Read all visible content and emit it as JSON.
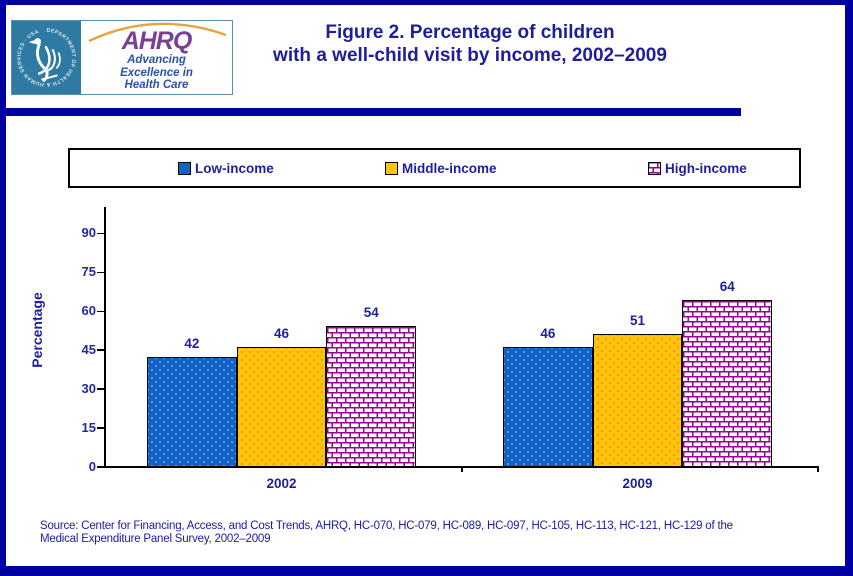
{
  "header": {
    "logo": {
      "acronym": "AHRQ",
      "tagline_lines": [
        "Advancing",
        "Excellence in",
        "Health Care"
      ],
      "seal_text": "DEPARTMENT OF HEALTH & HUMAN SERVICES · USA"
    },
    "title_line1": "Figure 2. Percentage of children",
    "title_line2": "with a well-child visit by income, 2002–2009"
  },
  "source": {
    "line1": "Source: Center for Financing, Access, and Cost Trends, AHRQ, HC-070, HC-079, HC-089, HC-097, HC-105, HC-113, HC-121, HC-129 of the",
    "line2": "Medical Expenditure Panel Survey,  2002–2009"
  },
  "colors": {
    "frame_navy": "#0000a0",
    "text_navy": "#1f1f9e",
    "low_income_blue": "#1263c5",
    "middle_income_yellow": "#ffc30b",
    "high_income_magenta": "#990099",
    "seal_teal": "#2f7aa3",
    "ahrq_purple": "#7a3f98",
    "arc_orange": "#e8a33b"
  },
  "chart_data": {
    "type": "bar",
    "title": "Figure 2. Percentage of children with a well-child visit by income, 2002–2009",
    "categories": [
      "2002",
      "2009"
    ],
    "series": [
      {
        "name": "Low-income",
        "values": [
          42,
          46
        ],
        "color": "#1263c5",
        "pattern": "solid-dotted"
      },
      {
        "name": "Middle-income",
        "values": [
          46,
          51
        ],
        "color": "#ffc30b",
        "pattern": "solid-dotted"
      },
      {
        "name": "High-income",
        "values": [
          54,
          64
        ],
        "color": "#990099",
        "pattern": "brick"
      }
    ],
    "xlabel": "",
    "ylabel": "Percentage",
    "yticks": [
      0,
      15,
      30,
      45,
      60,
      75,
      90
    ],
    "ylim": [
      0,
      100
    ],
    "grid": false,
    "legend_position": "top",
    "value_labels": true
  }
}
